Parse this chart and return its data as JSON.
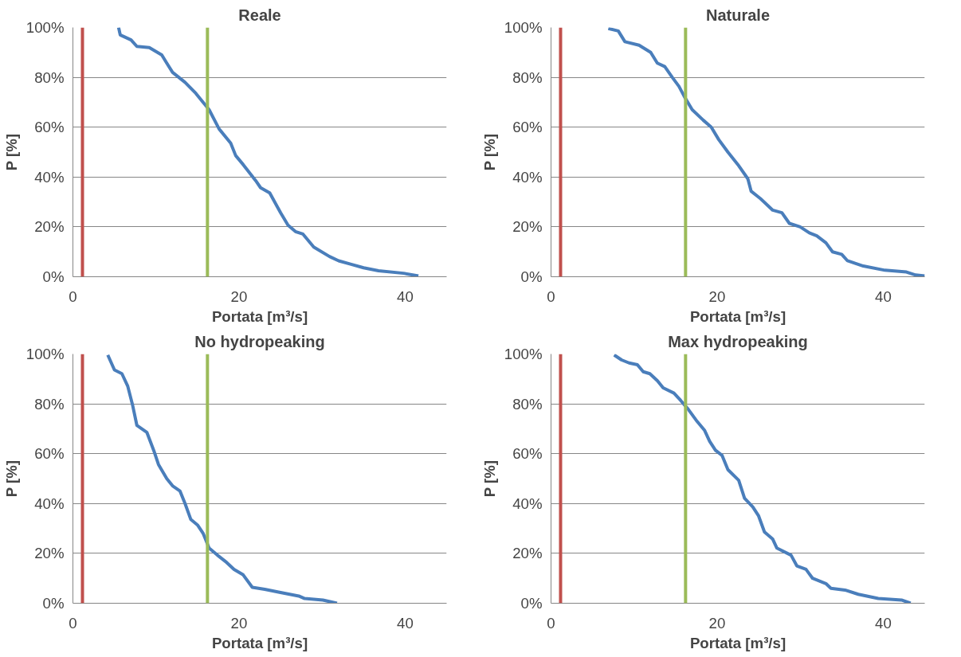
{
  "chart_data": [
    {
      "type": "line",
      "title": "Reale",
      "xlabel": "Portata [m³/s]",
      "ylabel": "P [%]",
      "xlim": [
        0,
        45
      ],
      "xticks": [
        0,
        20,
        40
      ],
      "ylim": [
        0,
        100
      ],
      "yticks": [
        {
          "value": 0,
          "label": "0%"
        },
        {
          "value": 20,
          "label": "20%"
        },
        {
          "value": 40,
          "label": "40%"
        },
        {
          "value": 60,
          "label": "60%"
        },
        {
          "value": 80,
          "label": "80%"
        },
        {
          "value": 100,
          "label": "100%"
        }
      ],
      "grid": "y",
      "marker": "none",
      "line_style": "solid",
      "ref_lines": [
        {
          "axis": "x",
          "value": 1.15,
          "label": null,
          "color": "#c0504d"
        },
        {
          "axis": "x",
          "value": 16.2,
          "label": null,
          "color": "#9bbb59"
        }
      ],
      "series": [
        {
          "color": "#4a7ebb",
          "x": [
            5.5,
            5.7,
            7.0,
            7.7,
            9.2,
            10.7,
            11.3,
            12.0,
            13.5,
            14.8,
            15.5,
            16.4,
            17.6,
            19.0,
            19.6,
            20.5,
            22.0,
            22.6,
            23.7,
            25.0,
            25.9,
            26.8,
            27.7,
            29.0,
            30.9,
            32.0,
            33.5,
            35.0,
            36.8,
            39.8,
            41.6
          ],
          "values": [
            100,
            97,
            95,
            92.4,
            91.9,
            89,
            85.7,
            82,
            78,
            73.6,
            70.7,
            67,
            59.3,
            53.6,
            48.6,
            45,
            38.6,
            35.7,
            33.6,
            25.7,
            20.7,
            18.1,
            17.1,
            11.9,
            8.1,
            6.4,
            5,
            3.6,
            2.4,
            1.4,
            0.3
          ]
        }
      ]
    },
    {
      "type": "line",
      "title": "Naturale",
      "xlabel": "Portata [m³/s]",
      "ylabel": "P [%]",
      "xlim": [
        0,
        45
      ],
      "xticks": [
        0,
        20,
        40
      ],
      "ylim": [
        0,
        100
      ],
      "yticks": [
        {
          "value": 0,
          "label": "0%"
        },
        {
          "value": 20,
          "label": "20%"
        },
        {
          "value": 40,
          "label": "40%"
        },
        {
          "value": 60,
          "label": "60%"
        },
        {
          "value": 80,
          "label": "80%"
        },
        {
          "value": 100,
          "label": "100%"
        }
      ],
      "grid": "y",
      "marker": "none",
      "line_style": "solid",
      "ref_lines": [
        {
          "axis": "x",
          "value": 1.15,
          "label": null,
          "color": "#c0504d"
        },
        {
          "axis": "x",
          "value": 16.2,
          "label": null,
          "color": "#9bbb59"
        }
      ],
      "series": [
        {
          "color": "#4a7ebb",
          "x": [
            6.9,
            8.1,
            8.9,
            10.6,
            12.0,
            12.8,
            13.7,
            14.6,
            15.4,
            16.1,
            17.0,
            18.3,
            19.3,
            20.2,
            21.3,
            22.5,
            23.7,
            24.1,
            25.2,
            26.7,
            27.8,
            28.7,
            30.0,
            31.1,
            32.0,
            33.1,
            33.9,
            35.0,
            35.7,
            37.6,
            40.2,
            42.8,
            43.9,
            45
          ],
          "values": [
            99.6,
            98.6,
            94.3,
            92.9,
            90,
            85.7,
            84.3,
            80,
            76.4,
            72,
            67,
            62.9,
            60,
            55,
            50,
            45,
            39.3,
            34.3,
            31.4,
            26.7,
            25.7,
            21.4,
            20,
            17.6,
            16.4,
            13.6,
            10,
            9,
            6.4,
            4.3,
            2.6,
            1.9,
            0.7,
            0.3
          ]
        }
      ]
    },
    {
      "type": "line",
      "title": "No hydropeaking",
      "xlabel": "Portata [m³/s]",
      "ylabel": "P [%]",
      "xlim": [
        0,
        45
      ],
      "xticks": [
        0,
        20,
        40
      ],
      "ylim": [
        0,
        100
      ],
      "yticks": [
        {
          "value": 0,
          "label": "0%"
        },
        {
          "value": 20,
          "label": "20%"
        },
        {
          "value": 40,
          "label": "40%"
        },
        {
          "value": 60,
          "label": "60%"
        },
        {
          "value": 80,
          "label": "80%"
        },
        {
          "value": 100,
          "label": "100%"
        }
      ],
      "grid": "y",
      "marker": "none",
      "line_style": "solid",
      "ref_lines": [
        {
          "axis": "x",
          "value": 1.15,
          "label": null,
          "color": "#c0504d"
        },
        {
          "axis": "x",
          "value": 16.2,
          "label": null,
          "color": "#9bbb59"
        }
      ],
      "series": [
        {
          "color": "#4a7ebb",
          "x": [
            4.2,
            5.0,
            5.9,
            6.6,
            7.2,
            7.7,
            8.9,
            9.8,
            10.3,
            11.3,
            12.0,
            12.9,
            13.5,
            14.2,
            15.0,
            15.7,
            16.4,
            17.4,
            18.5,
            19.4,
            20.5,
            21.6,
            23.1,
            25.0,
            27.2,
            27.9,
            30.1,
            31.8
          ],
          "values": [
            99.6,
            93.6,
            92.1,
            87.1,
            79.3,
            71.4,
            68.6,
            60.7,
            55.7,
            50,
            47.1,
            45,
            40,
            33.6,
            31.4,
            27.9,
            22.1,
            19.3,
            16.4,
            13.6,
            11.4,
            6.4,
            5.6,
            4.3,
            2.9,
            1.9,
            1.3,
            0
          ]
        }
      ]
    },
    {
      "type": "line",
      "title": "Max hydropeaking",
      "xlabel": "Portata [m³/s]",
      "ylabel": "P [%]",
      "xlim": [
        0,
        45
      ],
      "xticks": [
        0,
        20,
        40
      ],
      "ylim": [
        0,
        100
      ],
      "yticks": [
        {
          "value": 0,
          "label": "0%"
        },
        {
          "value": 20,
          "label": "20%"
        },
        {
          "value": 40,
          "label": "40%"
        },
        {
          "value": 60,
          "label": "60%"
        },
        {
          "value": 80,
          "label": "80%"
        },
        {
          "value": 100,
          "label": "100%"
        }
      ],
      "grid": "y",
      "marker": "none",
      "line_style": "solid",
      "ref_lines": [
        {
          "axis": "x",
          "value": 1.15,
          "label": null,
          "color": "#c0504d"
        },
        {
          "axis": "x",
          "value": 16.2,
          "label": null,
          "color": "#9bbb59"
        }
      ],
      "series": [
        {
          "color": "#4a7ebb",
          "x": [
            7.6,
            8.5,
            9.4,
            10.4,
            11.1,
            11.9,
            12.8,
            13.5,
            14.8,
            15.6,
            16.5,
            17.6,
            18.5,
            19.1,
            19.8,
            20.6,
            21.3,
            22.6,
            23.3,
            24.3,
            25.0,
            25.7,
            26.7,
            27.2,
            28.9,
            29.6,
            30.7,
            31.5,
            33.1,
            33.7,
            35.4,
            37.0,
            39.4,
            42.2,
            43.3
          ],
          "values": [
            99.6,
            97.6,
            96.4,
            95.7,
            92.9,
            92.1,
            89.3,
            86.4,
            84.3,
            81.4,
            77.9,
            72.9,
            69.3,
            65,
            61.4,
            59.3,
            53.6,
            49.3,
            42.1,
            38.6,
            35,
            28.6,
            25.7,
            22.1,
            19.3,
            15,
            13.6,
            10,
            7.9,
            6,
            5.3,
            3.6,
            1.9,
            1.3,
            0
          ]
        }
      ]
    }
  ]
}
